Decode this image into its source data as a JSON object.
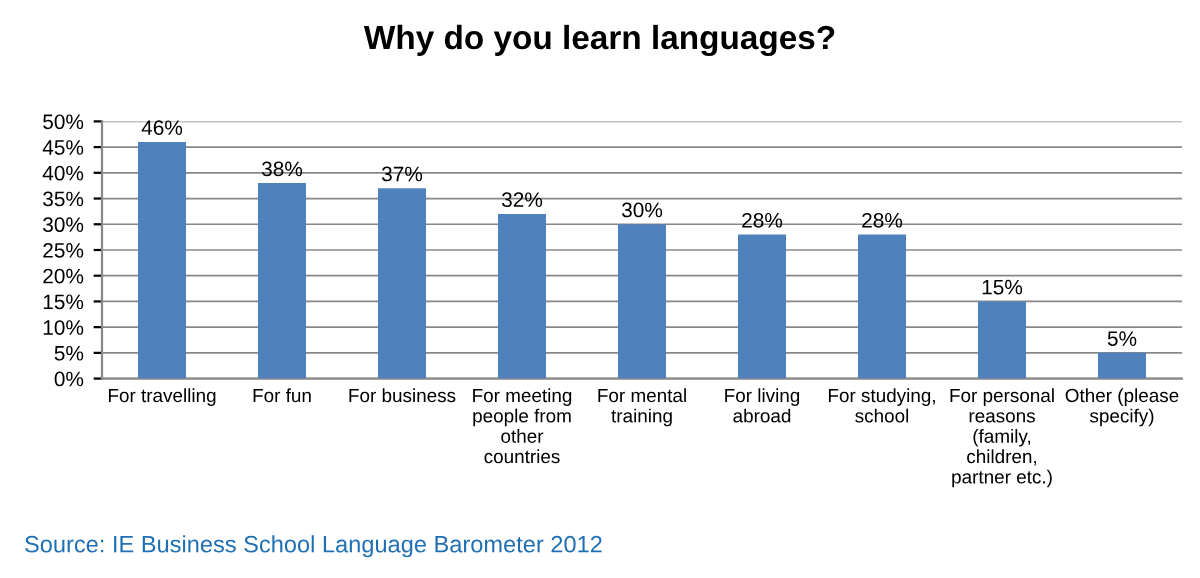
{
  "chart_data": {
    "type": "bar",
    "title": "Why do you learn languages?",
    "categories": [
      "For travelling",
      "For fun",
      "For business",
      "For meeting\npeople from\nother\ncountries",
      "For mental\ntraining",
      "For living\nabroad",
      "For studying,\nschool",
      "For personal\nreasons\n(family,\nchildren,\npartner etc.)",
      "Other (please\nspecify)"
    ],
    "values": [
      46,
      38,
      37,
      32,
      30,
      28,
      28,
      15,
      5
    ],
    "value_labels": [
      "46%",
      "38%",
      "37%",
      "32%",
      "30%",
      "28%",
      "28%",
      "15%",
      "5%"
    ],
    "color": "#4f81bd",
    "ylim": [
      0,
      50
    ],
    "yticks": [
      {
        "value": 0,
        "label": "0%"
      },
      {
        "value": 5,
        "label": "5%"
      },
      {
        "value": 10,
        "label": "10%"
      },
      {
        "value": 15,
        "label": "15%"
      },
      {
        "value": 20,
        "label": "20%"
      },
      {
        "value": 25,
        "label": "25%"
      },
      {
        "value": 30,
        "label": "30%"
      },
      {
        "value": 35,
        "label": "35%"
      },
      {
        "value": 40,
        "label": "40%"
      },
      {
        "value": 45,
        "label": "45%"
      },
      {
        "value": 50,
        "label": "50%"
      }
    ],
    "grid": "y",
    "annotations": [
      "Source: IE Business School Language Barometer 2012"
    ]
  }
}
